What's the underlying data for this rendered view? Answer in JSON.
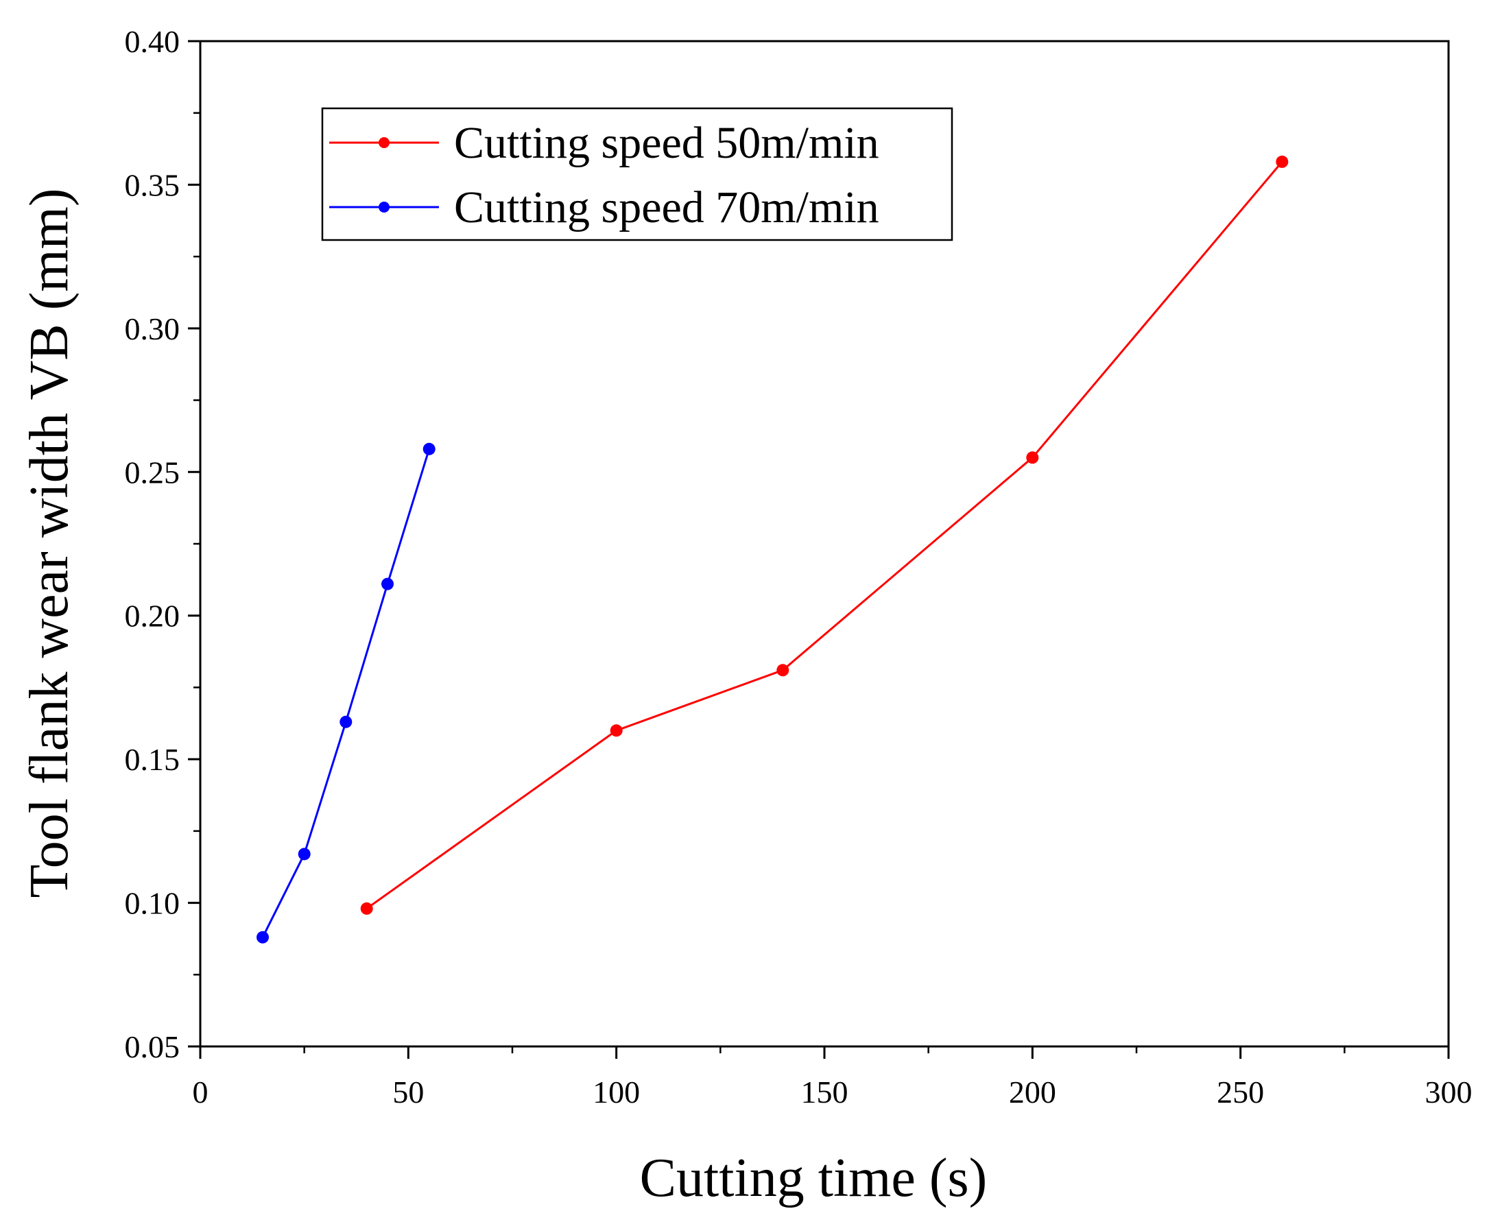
{
  "chart_data": {
    "type": "line",
    "title": "",
    "xlabel": "Cutting time (s)",
    "ylabel": "Tool flank wear width VB (mm)",
    "xlim": [
      0,
      300
    ],
    "ylim": [
      0.05,
      0.4
    ],
    "x_ticks": [
      0,
      50,
      100,
      150,
      200,
      250,
      300
    ],
    "x_tick_labels": [
      "0",
      "50",
      "100",
      "150",
      "200",
      "250",
      "300"
    ],
    "x_minor_step": 25,
    "y_ticks": [
      0.05,
      0.1,
      0.15,
      0.2,
      0.25,
      0.3,
      0.35,
      0.4
    ],
    "y_tick_labels": [
      "0.05",
      "0.10",
      "0.15",
      "0.20",
      "0.25",
      "0.30",
      "0.35",
      "0.40"
    ],
    "y_minor_step": 0.025,
    "grid": false,
    "legend_position": "top-left",
    "series": [
      {
        "name": "Cutting speed 50m/min",
        "color": "#ff0000",
        "x": [
          40,
          100,
          140,
          200,
          260
        ],
        "values": [
          0.098,
          0.16,
          0.181,
          0.255,
          0.358
        ]
      },
      {
        "name": "Cutting speed 70m/min",
        "color": "#0000ff",
        "x": [
          15,
          25,
          35,
          45,
          55
        ],
        "values": [
          0.088,
          0.117,
          0.163,
          0.211,
          0.258
        ]
      }
    ]
  }
}
